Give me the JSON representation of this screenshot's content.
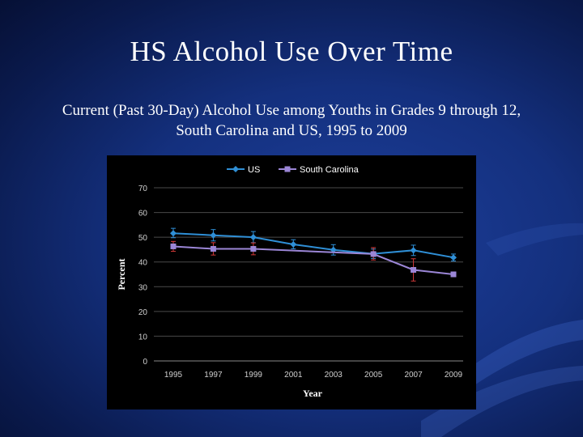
{
  "slide": {
    "title": "HS Alcohol Use Over Time",
    "subtitle_line1": "Current (Past 30-Day) Alcohol Use among Youths in Grades 9 through 12,",
    "subtitle_line2": "South Carolina and US, 1995 to 2009"
  },
  "colors": {
    "us": "#2f8fd6",
    "sc": "#9b86d6",
    "error_bar": "#d43a3a",
    "grid": "#4a4a4a"
  },
  "chart_data": {
    "type": "line",
    "xlabel": "Year",
    "ylabel": "Percent",
    "categories": [
      "1995",
      "1997",
      "1999",
      "2001",
      "2003",
      "2005",
      "2007",
      "2009"
    ],
    "ylim": [
      0,
      70
    ],
    "yticks": [
      0,
      10,
      20,
      30,
      40,
      50,
      60,
      70
    ],
    "grid": true,
    "legend_position": "top-center",
    "series": [
      {
        "name": "US",
        "marker": "diamond",
        "values": [
          51.6,
          50.8,
          50.0,
          47.1,
          44.9,
          43.3,
          44.7,
          41.8
        ],
        "error_low": [
          49.8,
          48.5,
          47.8,
          45.3,
          42.8,
          41.4,
          42.6,
          40.4
        ],
        "error_high": [
          53.6,
          53.1,
          52.3,
          49.0,
          47.0,
          45.2,
          46.8,
          43.2
        ]
      },
      {
        "name": "South Carolina",
        "marker": "square",
        "values": [
          46.3,
          45.3,
          45.3,
          null,
          null,
          43.2,
          36.8,
          35.0
        ],
        "error_low": [
          44.3,
          42.8,
          42.9,
          null,
          null,
          40.8,
          32.3,
          null
        ],
        "error_high": [
          48.3,
          47.8,
          47.7,
          null,
          null,
          45.8,
          41.3,
          null
        ]
      }
    ]
  }
}
